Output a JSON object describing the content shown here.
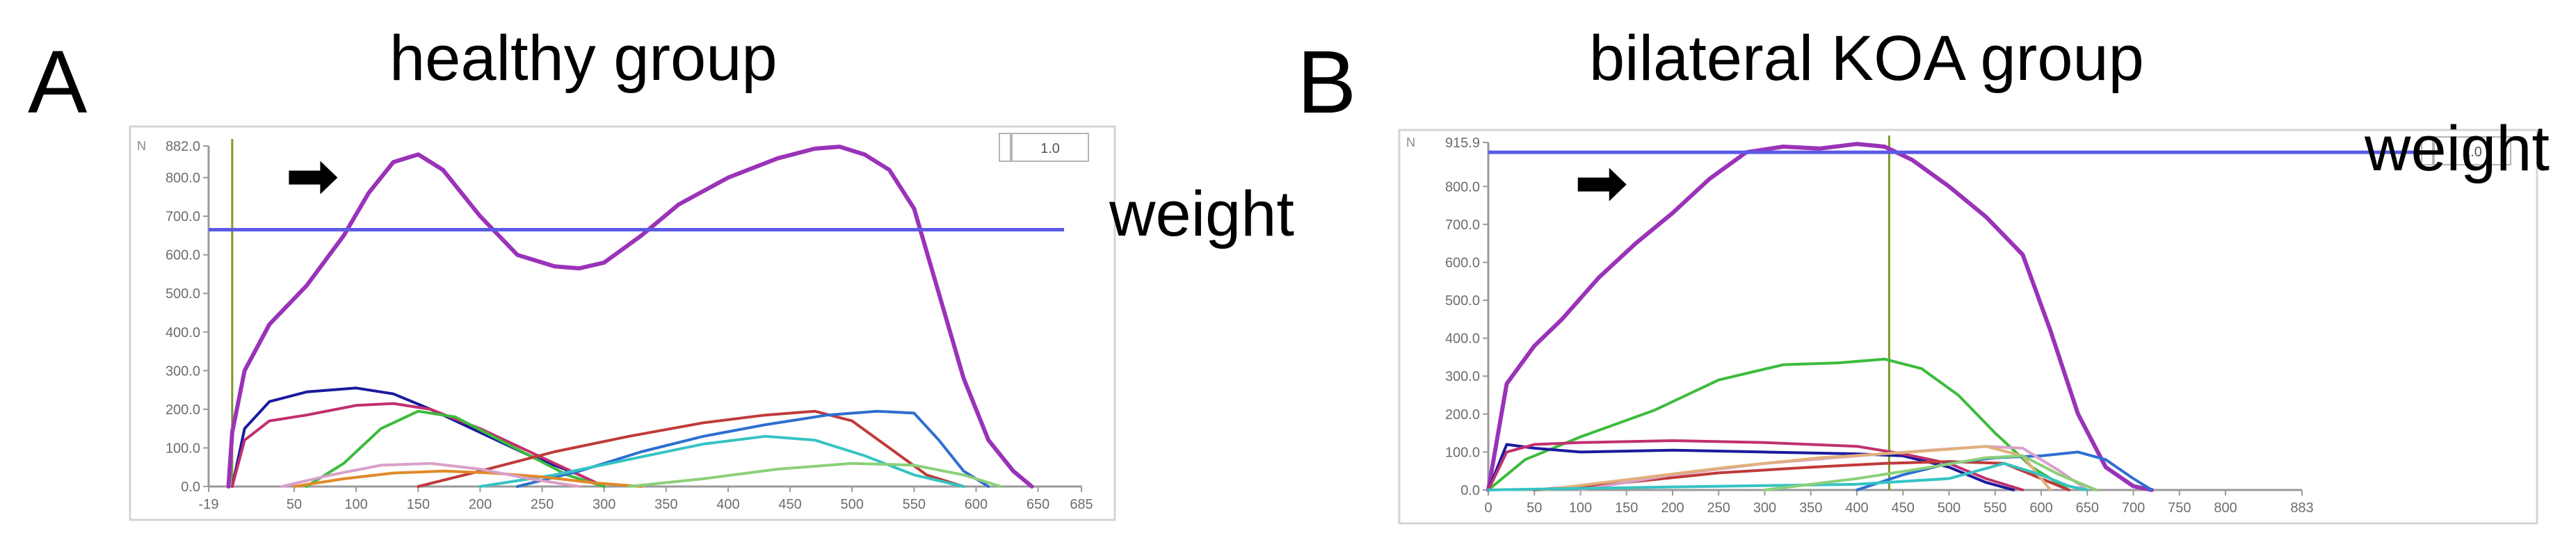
{
  "panels": [
    {
      "letter": "A",
      "title": "healthy group",
      "weight_label": "weight",
      "unit": "N",
      "zoom": "1.0",
      "chart_data": {
        "type": "line",
        "title": "healthy group",
        "xlim": [
          -19,
          685
        ],
        "ylim": [
          0,
          882.0
        ],
        "x_ticks": [
          -19,
          50,
          100,
          150,
          200,
          250,
          300,
          350,
          400,
          450,
          500,
          550,
          600,
          650,
          685
        ],
        "x_tick_labels": [
          "-19",
          "50",
          "100",
          "150",
          "200",
          "250",
          "300",
          "350",
          "400",
          "450",
          "500",
          "550",
          "600",
          "650",
          "685"
        ],
        "y_ticks": [
          0,
          100,
          200,
          300,
          400,
          500,
          600,
          700,
          800,
          882
        ],
        "y_tick_labels": [
          "0.0",
          "100.0",
          "200.0",
          "300.0",
          "400.0",
          "500.0",
          "600.0",
          "700.0",
          "800.0",
          "882.0"
        ],
        "reference_line": {
          "label": "weight",
          "y": 665,
          "color": "#5a5ae6"
        },
        "cursor_x": 0,
        "cursor_color": "#7a9a2a",
        "arrow_point": {
          "x": 85,
          "y": 800
        },
        "series": [
          {
            "color": "#9a33b8",
            "main": true,
            "x": [
              -3,
              0,
              10,
              30,
              60,
              90,
              110,
              130,
              150,
              170,
              200,
              230,
              260,
              280,
              300,
              330,
              360,
              400,
              440,
              470,
              490,
              510,
              530,
              550,
              570,
              590,
              610,
              630,
              645
            ],
            "y": [
              0,
              140,
              300,
              420,
              520,
              650,
              760,
              840,
              860,
              820,
              700,
              600,
              570,
              565,
              580,
              650,
              730,
              800,
              850,
              875,
              880,
              860,
              820,
              720,
              500,
              280,
              120,
              40,
              0
            ]
          },
          {
            "color": "#1a1a9e",
            "x": [
              0,
              10,
              30,
              60,
              100,
              130,
              160,
              200,
              240,
              280,
              300
            ],
            "y": [
              0,
              150,
              220,
              245,
              255,
              240,
              200,
              140,
              80,
              30,
              0
            ]
          },
          {
            "color": "#c0306e",
            "x": [
              0,
              10,
              30,
              60,
              100,
              130,
              160,
              200,
              240,
              280,
              300
            ],
            "y": [
              0,
              120,
              170,
              185,
              210,
              215,
              200,
              150,
              90,
              30,
              0
            ]
          },
          {
            "color": "#3dbb3d",
            "x": [
              60,
              90,
              120,
              150,
              180,
              210,
              240,
              270,
              300
            ],
            "y": [
              0,
              60,
              150,
              195,
              180,
              130,
              80,
              30,
              0
            ]
          },
          {
            "color": "#c03a3a",
            "x": [
              150,
              200,
              260,
              320,
              380,
              430,
              470,
              500,
              530,
              560,
              590
            ],
            "y": [
              0,
              40,
              90,
              130,
              165,
              185,
              195,
              170,
              100,
              30,
              0
            ]
          },
          {
            "color": "#2e6fd0",
            "x": [
              230,
              280,
              330,
              380,
              430,
              480,
              520,
              550,
              570,
              590,
              610
            ],
            "y": [
              0,
              40,
              90,
              130,
              160,
              185,
              195,
              190,
              120,
              40,
              0
            ]
          },
          {
            "color": "#36c3c3",
            "x": [
              200,
              260,
              320,
              380,
              430,
              470,
              510,
              550,
              590
            ],
            "y": [
              0,
              30,
              70,
              110,
              130,
              120,
              80,
              30,
              0
            ]
          },
          {
            "color": "#e08a2a",
            "x": [
              50,
              90,
              130,
              170,
              210,
              250,
              290,
              330
            ],
            "y": [
              0,
              20,
              35,
              40,
              35,
              25,
              10,
              0
            ]
          },
          {
            "color": "#d9a0c8",
            "x": [
              40,
              80,
              120,
              160,
              200,
              240,
              280
            ],
            "y": [
              0,
              30,
              55,
              60,
              45,
              20,
              0
            ]
          },
          {
            "color": "#8bd07a",
            "x": [
              320,
              380,
              440,
              500,
              550,
              590,
              620
            ],
            "y": [
              0,
              20,
              45,
              60,
              55,
              30,
              0
            ]
          }
        ]
      }
    },
    {
      "letter": "B",
      "title": "bilateral KOA group",
      "weight_label": "weight",
      "unit": "N",
      "zoom": "1.0",
      "chart_data": {
        "type": "line",
        "title": "bilateral KOA group",
        "xlim": [
          0,
          883
        ],
        "ylim": [
          0,
          915.9
        ],
        "x_ticks": [
          0,
          50,
          100,
          150,
          200,
          250,
          300,
          350,
          400,
          450,
          500,
          550,
          600,
          650,
          700,
          750,
          800,
          883
        ],
        "x_tick_labels": [
          "0",
          "50",
          "100",
          "150",
          "200",
          "250",
          "300",
          "350",
          "400",
          "450",
          "500",
          "550",
          "600",
          "650",
          "700",
          "750",
          "800",
          "883"
        ],
        "y_ticks": [
          0,
          100,
          200,
          300,
          400,
          500,
          600,
          700,
          800,
          915.9
        ],
        "y_tick_labels": [
          "0.0",
          "100.0",
          "200.0",
          "300.0",
          "400.0",
          "500.0",
          "600.0",
          "700.0",
          "800.0",
          "915.9"
        ],
        "reference_line": {
          "label": "weight",
          "y": 890,
          "color": "#5a5ae6"
        },
        "cursor_x": 435,
        "cursor_color": "#7a9a2a",
        "arrow_point": {
          "x": 150,
          "y": 805
        },
        "series": [
          {
            "color": "#9a33b8",
            "main": true,
            "x": [
              0,
              20,
              50,
              80,
              120,
              160,
              200,
              240,
              280,
              320,
              360,
              400,
              430,
              460,
              500,
              540,
              580,
              610,
              640,
              670,
              700,
              720
            ],
            "y": [
              0,
              280,
              380,
              450,
              560,
              650,
              730,
              820,
              890,
              905,
              900,
              912,
              905,
              870,
              800,
              720,
              620,
              420,
              200,
              60,
              10,
              0
            ]
          },
          {
            "color": "#3dbb3d",
            "x": [
              0,
              40,
              100,
              180,
              250,
              320,
              380,
              430,
              470,
              510,
              550,
              590,
              630
            ],
            "y": [
              0,
              80,
              140,
              210,
              290,
              330,
              335,
              345,
              320,
              250,
              150,
              60,
              0
            ]
          },
          {
            "color": "#1a1a9e",
            "x": [
              0,
              20,
              50,
              100,
              200,
              300,
              400,
              450,
              500,
              540,
              570
            ],
            "y": [
              0,
              120,
              110,
              100,
              105,
              100,
              95,
              90,
              60,
              20,
              0
            ]
          },
          {
            "color": "#c0306e",
            "x": [
              0,
              20,
              50,
              100,
              200,
              300,
              400,
              450,
              500,
              540,
              580
            ],
            "y": [
              0,
              100,
              120,
              125,
              130,
              125,
              115,
              95,
              70,
              30,
              0
            ]
          },
          {
            "color": "#c03a3a",
            "x": [
              50,
              150,
              250,
              350,
              430,
              500,
              560,
              600,
              630
            ],
            "y": [
              0,
              20,
              45,
              60,
              70,
              75,
              70,
              30,
              0
            ]
          },
          {
            "color": "#2e6fd0",
            "x": [
              400,
              450,
              500,
              550,
              600,
              640,
              670,
              700,
              720
            ],
            "y": [
              0,
              40,
              70,
              85,
              90,
              100,
              80,
              30,
              0
            ]
          },
          {
            "color": "#d9a0c8",
            "x": [
              100,
              200,
              300,
              400,
              480,
              540,
              580,
              620,
              650
            ],
            "y": [
              0,
              40,
              70,
              90,
              105,
              115,
              110,
              50,
              0
            ]
          },
          {
            "color": "#e0b07a",
            "x": [
              60,
              160,
              260,
              360,
              460,
              540,
              580,
              610
            ],
            "y": [
              0,
              30,
              60,
              85,
              100,
              115,
              90,
              0
            ]
          },
          {
            "color": "#36c3c3",
            "x": [
              0,
              200,
              400,
              500,
              560,
              600,
              630,
              650
            ],
            "y": [
              0,
              8,
              15,
              30,
              70,
              40,
              10,
              0
            ]
          },
          {
            "color": "#8bd07a",
            "x": [
              300,
              400,
              480,
              540,
              580,
              620,
              660
            ],
            "y": [
              0,
              30,
              60,
              85,
              90,
              40,
              0
            ]
          }
        ]
      }
    }
  ]
}
